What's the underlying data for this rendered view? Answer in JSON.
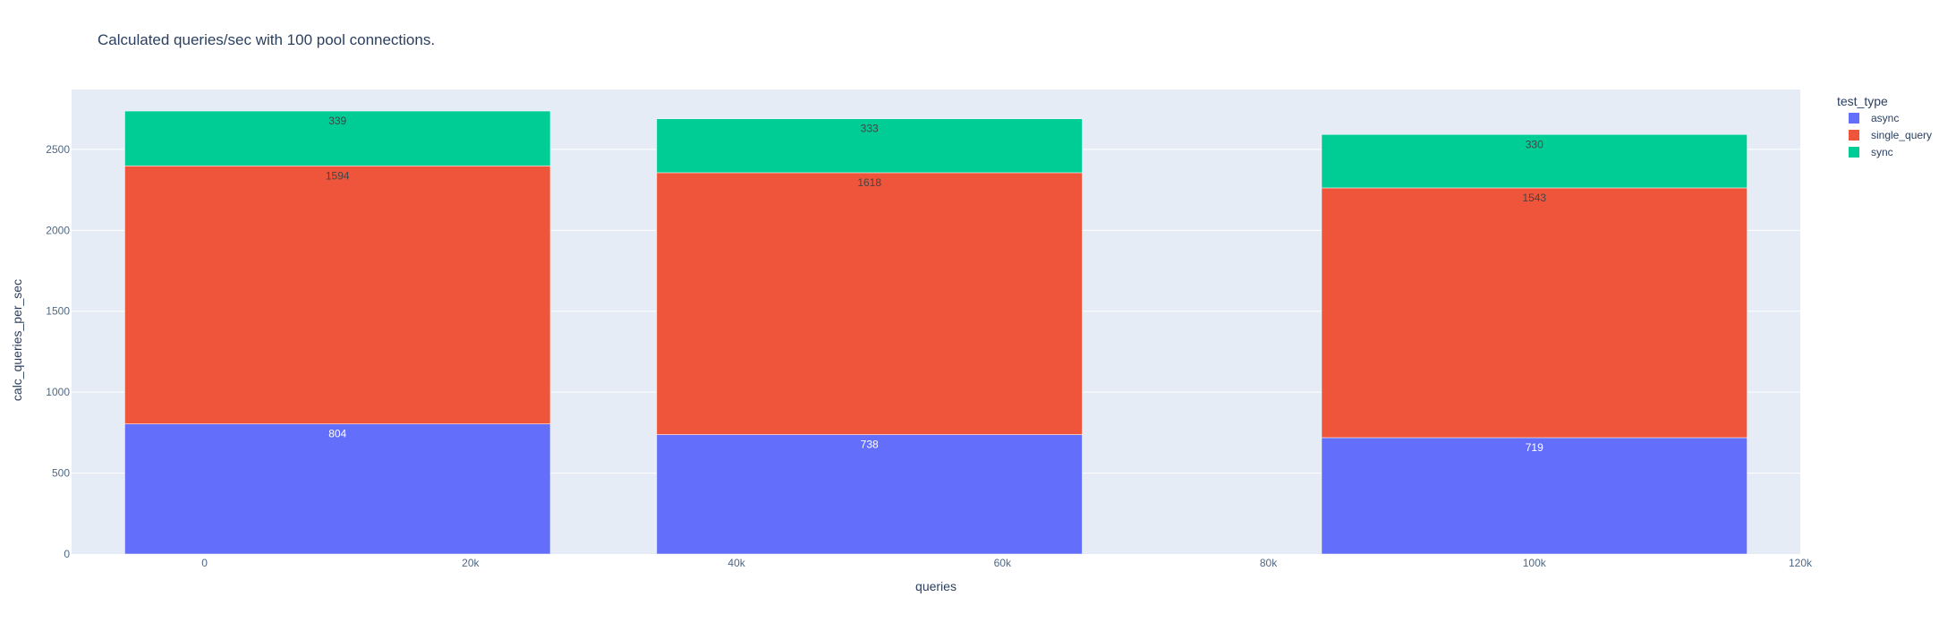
{
  "chart_data": {
    "type": "bar",
    "barmode": "stack",
    "title": "Calculated queries/sec with 100 pool connections.",
    "xlabel": "queries",
    "ylabel": "calc_queries_per_sec",
    "x": [
      10000,
      50000,
      100000
    ],
    "bar_width": 32000,
    "xlim": [
      -10000,
      120000
    ],
    "ylim": [
      0,
      2870
    ],
    "x_ticks": [
      {
        "value": 0,
        "label": "0"
      },
      {
        "value": 20000,
        "label": "20k"
      },
      {
        "value": 40000,
        "label": "40k"
      },
      {
        "value": 60000,
        "label": "60k"
      },
      {
        "value": 80000,
        "label": "80k"
      },
      {
        "value": 100000,
        "label": "100k"
      },
      {
        "value": 120000,
        "label": "120k"
      }
    ],
    "y_ticks": [
      {
        "value": 0,
        "label": "0"
      },
      {
        "value": 500,
        "label": "500"
      },
      {
        "value": 1000,
        "label": "1000"
      },
      {
        "value": 1500,
        "label": "1500"
      },
      {
        "value": 2000,
        "label": "2000"
      },
      {
        "value": 2500,
        "label": "2500"
      }
    ],
    "grid": true,
    "legend_title": "test_type",
    "legend_position": "top-right",
    "series": [
      {
        "name": "async",
        "color": "#636efa",
        "label_color": "#ffffff",
        "values": [
          804,
          738,
          719
        ],
        "labels": [
          "804",
          "738",
          "719"
        ]
      },
      {
        "name": "single_query",
        "color": "#ef553b",
        "label_color": "#444444",
        "values": [
          1594,
          1618,
          1543
        ],
        "labels": [
          "1594",
          "1618",
          "1543"
        ]
      },
      {
        "name": "sync",
        "color": "#00cc96",
        "label_color": "#444444",
        "values": [
          339,
          333,
          330
        ],
        "labels": [
          "339",
          "333",
          "330"
        ]
      }
    ]
  },
  "colors": {
    "plot_background": "#e5ecf6",
    "gridline": "#ffffff",
    "text": "#2a3f5f",
    "tick_text": "#506784"
  }
}
